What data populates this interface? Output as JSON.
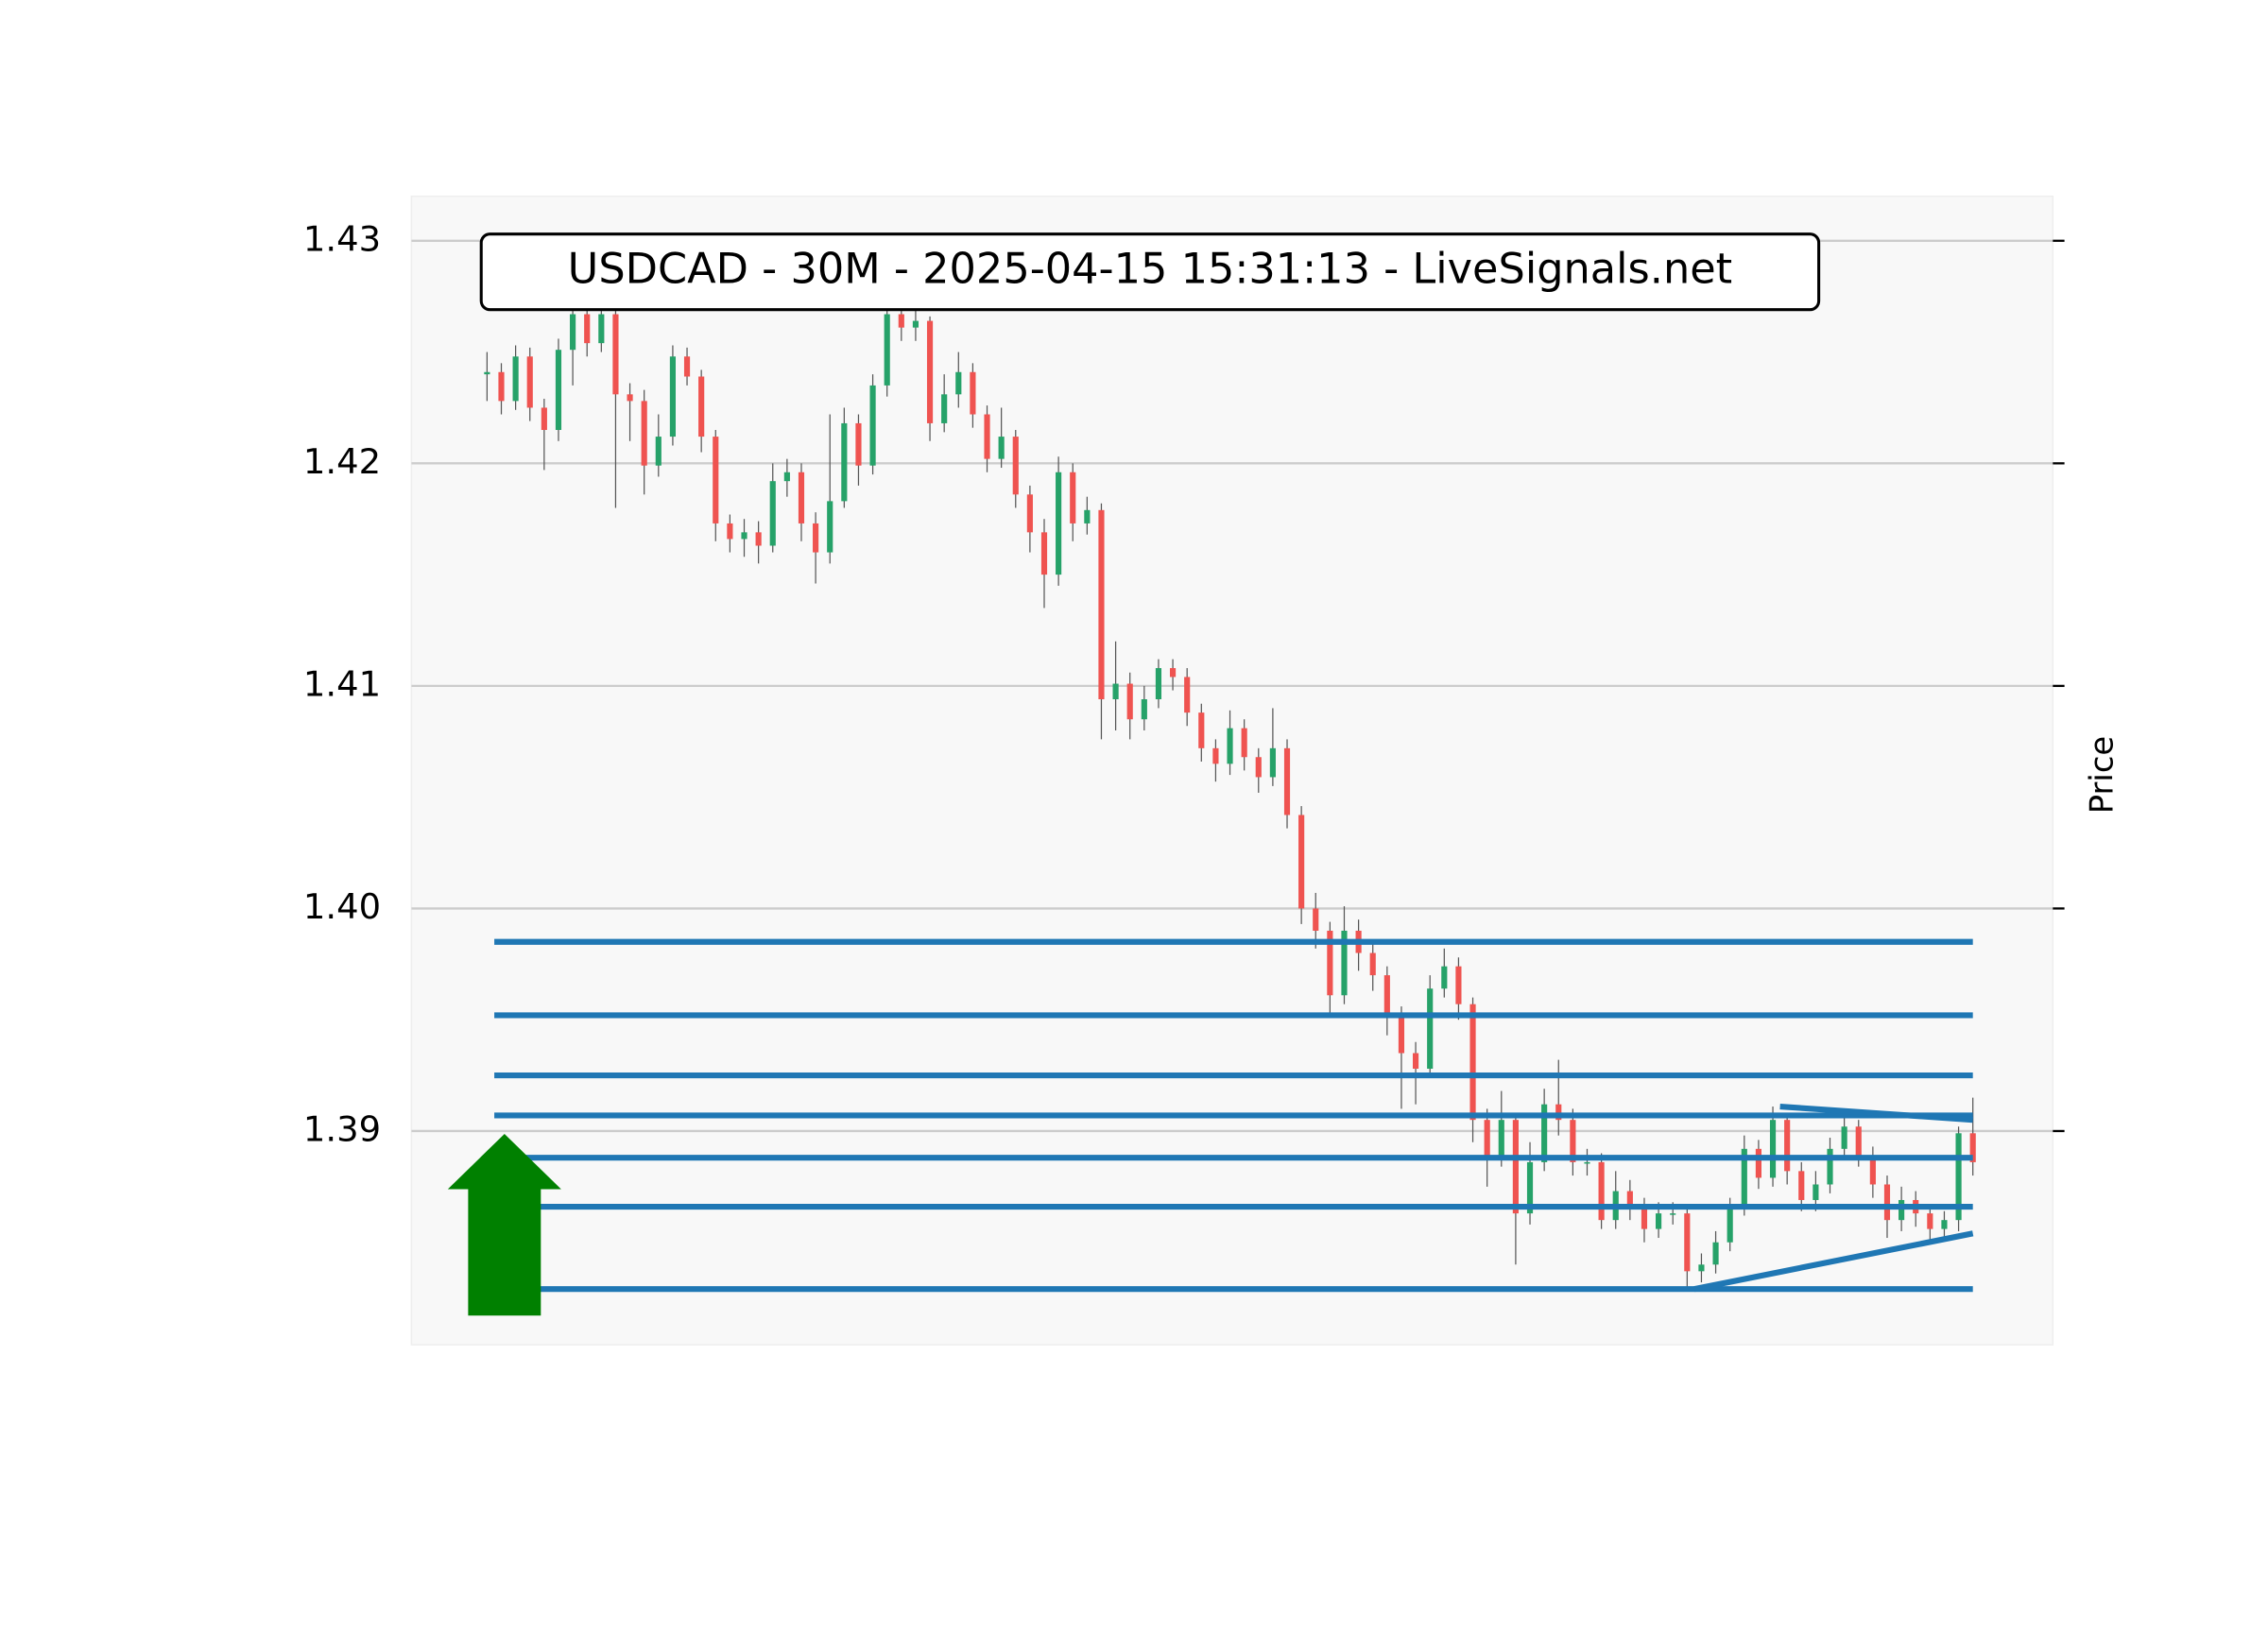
{
  "chart_data": {
    "type": "candlestick",
    "title": "USDCAD - 30M - 2025-04-15 15:31:13 - LiveSignals.net",
    "y_label": "Price",
    "up_color": "#26a269",
    "down_color": "#ef5350",
    "level_color": "#1f77b4",
    "grid": true,
    "ylim": [
      1.3804,
      1.432
    ],
    "yticks": [
      1.39,
      {
        "value": 1.4,
        "label": "1.40"
      },
      1.41,
      1.42,
      1.43
    ],
    "open": [
      1.424,
      1.4241,
      1.4228,
      1.4248,
      1.4225,
      1.4215,
      1.4251,
      1.4267,
      1.4254,
      1.4267,
      1.4231,
      1.4228,
      1.4199,
      1.4212,
      1.4248,
      1.4239,
      1.4212,
      1.4173,
      1.4166,
      1.4169,
      1.4163,
      1.4192,
      1.4196,
      1.4173,
      1.416,
      1.4183,
      1.4218,
      1.4199,
      1.4235,
      1.4267,
      1.4261,
      1.4264,
      1.4218,
      1.4231,
      1.4241,
      1.4222,
      1.4202,
      1.4212,
      1.4186,
      1.4169,
      1.415,
      1.4196,
      1.4173,
      1.4179,
      1.4094,
      1.4101,
      1.4085,
      1.4094,
      1.4108,
      1.4104,
      1.4088,
      1.4072,
      1.4065,
      1.4081,
      1.4068,
      1.4059,
      1.4072,
      1.4042,
      1.4,
      1.399,
      1.3961,
      1.399,
      1.398,
      1.397,
      1.3951,
      1.3935,
      1.3928,
      1.3964,
      1.3974,
      1.3957,
      1.3905,
      1.3889,
      1.3905,
      1.3863,
      1.3886,
      1.3912,
      1.3905,
      1.3886,
      1.3886,
      1.386,
      1.3873,
      1.3866,
      1.3856,
      1.3863,
      1.3863,
      1.3837,
      1.384,
      1.385,
      1.3866,
      1.3892,
      1.3879,
      1.3905,
      1.3882,
      1.3869,
      1.3876,
      1.3892,
      1.3902,
      1.3889,
      1.3876,
      1.386,
      1.3869,
      1.3863,
      1.3856,
      1.386,
      1.3899
    ],
    "high": [
      1.425,
      1.4245,
      1.4253,
      1.4252,
      1.4229,
      1.4256,
      1.4272,
      1.4271,
      1.4275,
      1.427,
      1.4236,
      1.4233,
      1.4222,
      1.4253,
      1.4252,
      1.4242,
      1.4215,
      1.4177,
      1.4175,
      1.4174,
      1.42,
      1.4202,
      1.42,
      1.4178,
      1.4222,
      1.4225,
      1.4222,
      1.424,
      1.4275,
      1.4272,
      1.427,
      1.4266,
      1.424,
      1.425,
      1.4245,
      1.4226,
      1.4225,
      1.4215,
      1.419,
      1.4175,
      1.4203,
      1.42,
      1.4185,
      1.4182,
      1.412,
      1.4106,
      1.41,
      1.4112,
      1.4112,
      1.4108,
      1.4092,
      1.4076,
      1.4089,
      1.4085,
      1.4072,
      1.409,
      1.4076,
      1.4046,
      1.4007,
      1.3994,
      1.4001,
      1.3995,
      1.3985,
      1.3974,
      1.3956,
      1.394,
      1.397,
      1.3982,
      1.3978,
      1.396,
      1.391,
      1.3918,
      1.3908,
      1.3895,
      1.3919,
      1.3932,
      1.391,
      1.3892,
      1.389,
      1.3882,
      1.3878,
      1.387,
      1.3868,
      1.3868,
      1.3866,
      1.3845,
      1.3855,
      1.387,
      1.3898,
      1.3896,
      1.3911,
      1.3908,
      1.3886,
      1.3882,
      1.3897,
      1.3907,
      1.3905,
      1.3893,
      1.388,
      1.3875,
      1.3873,
      1.3866,
      1.3864,
      1.3902,
      1.3915
    ],
    "low": [
      1.4228,
      1.4222,
      1.4224,
      1.4219,
      1.4197,
      1.421,
      1.4235,
      1.4248,
      1.425,
      1.418,
      1.421,
      1.4186,
      1.4194,
      1.4208,
      1.4235,
      1.4205,
      1.4165,
      1.416,
      1.4158,
      1.4155,
      1.416,
      1.4185,
      1.4165,
      1.4146,
      1.4155,
      1.418,
      1.419,
      1.4195,
      1.423,
      1.4255,
      1.4255,
      1.421,
      1.4214,
      1.4225,
      1.4216,
      1.4196,
      1.4198,
      1.418,
      1.416,
      1.4135,
      1.4145,
      1.4165,
      1.4168,
      1.4076,
      1.408,
      1.4076,
      1.408,
      1.409,
      1.4098,
      1.4082,
      1.4066,
      1.4057,
      1.406,
      1.4062,
      1.4052,
      1.4055,
      1.4036,
      1.3993,
      1.3982,
      1.3953,
      1.3957,
      1.3972,
      1.3963,
      1.3943,
      1.391,
      1.3912,
      1.3924,
      1.396,
      1.395,
      1.3895,
      1.3875,
      1.3884,
      1.384,
      1.3858,
      1.3882,
      1.3898,
      1.388,
      1.388,
      1.3856,
      1.3856,
      1.386,
      1.385,
      1.3852,
      1.3858,
      1.383,
      1.3832,
      1.3836,
      1.3846,
      1.3862,
      1.3874,
      1.3875,
      1.3876,
      1.3864,
      1.3864,
      1.3872,
      1.3888,
      1.3884,
      1.387,
      1.3852,
      1.3855,
      1.3857,
      1.385,
      1.3851,
      1.3855,
      1.388
    ],
    "close": [
      1.4241,
      1.4228,
      1.4248,
      1.4225,
      1.4215,
      1.4251,
      1.4267,
      1.4254,
      1.4267,
      1.4231,
      1.4228,
      1.4199,
      1.4212,
      1.4248,
      1.4239,
      1.4212,
      1.4173,
      1.4166,
      1.4169,
      1.4163,
      1.4192,
      1.4196,
      1.4173,
      1.416,
      1.4183,
      1.4218,
      1.4199,
      1.4235,
      1.4267,
      1.4261,
      1.4264,
      1.4218,
      1.4231,
      1.4241,
      1.4222,
      1.4202,
      1.4212,
      1.4186,
      1.4169,
      1.415,
      1.4196,
      1.4173,
      1.4179,
      1.4094,
      1.4101,
      1.4085,
      1.4094,
      1.4108,
      1.4104,
      1.4088,
      1.4072,
      1.4065,
      1.4081,
      1.4068,
      1.4059,
      1.4072,
      1.4042,
      1.4,
      1.399,
      1.3961,
      1.399,
      1.398,
      1.397,
      1.3951,
      1.3935,
      1.3928,
      1.3964,
      1.3974,
      1.3957,
      1.3905,
      1.3889,
      1.3905,
      1.3863,
      1.3886,
      1.3912,
      1.3905,
      1.3886,
      1.3886,
      1.386,
      1.3873,
      1.3866,
      1.3856,
      1.3863,
      1.3863,
      1.3837,
      1.384,
      1.385,
      1.3866,
      1.3892,
      1.3879,
      1.3905,
      1.3882,
      1.3869,
      1.3876,
      1.3892,
      1.3902,
      1.3889,
      1.3876,
      1.386,
      1.3869,
      1.3863,
      1.3856,
      1.386,
      1.3899,
      1.3886
    ],
    "levels": [
      1.3985,
      1.3952,
      1.3925,
      1.3907,
      1.3888,
      1.3866,
      1.3829
    ],
    "trendlines": [
      {
        "x": [
          90.5,
          104
        ],
        "y": [
          1.3911,
          1.3905
        ]
      },
      {
        "x": [
          84.5,
          104
        ],
        "y": [
          1.3829,
          1.3854
        ]
      }
    ]
  }
}
